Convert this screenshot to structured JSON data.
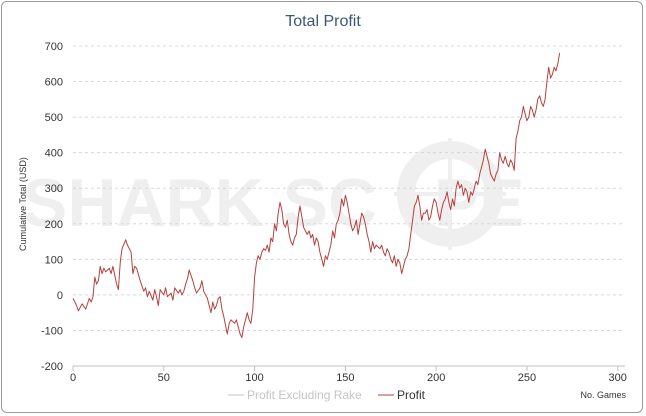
{
  "chart_data": {
    "type": "line",
    "title": "Total Profit",
    "ylabel": "Cumulative Total (USD)",
    "xlabel": "No. Games",
    "xlim": [
      0,
      304
    ],
    "ylim": [
      -200,
      700
    ],
    "xticks": [
      0,
      50,
      100,
      150,
      200,
      250,
      300
    ],
    "yticks": [
      -200,
      -100,
      0,
      100,
      200,
      300,
      400,
      500,
      600,
      700
    ],
    "grid": "horizontal dashed",
    "legend_position": "bottom",
    "watermark": "SHARK SCOPE",
    "colors": {
      "profit": "#b4413e",
      "profit_excluding_rake": "#c4c4c4",
      "title": "#3d5777",
      "grid": "#d8d8d8"
    },
    "series": [
      {
        "name": "Profit Excluding Rake",
        "visible": false,
        "points": []
      },
      {
        "name": "Profit",
        "visible": true,
        "points": [
          [
            0,
            -10
          ],
          [
            2,
            -30
          ],
          [
            3,
            -45
          ],
          [
            5,
            -25
          ],
          [
            7,
            -40
          ],
          [
            9,
            -10
          ],
          [
            10,
            -20
          ],
          [
            11,
            -5
          ],
          [
            12,
            50
          ],
          [
            13,
            30
          ],
          [
            14,
            40
          ],
          [
            15,
            80
          ],
          [
            16,
            60
          ],
          [
            17,
            75
          ],
          [
            18,
            65
          ],
          [
            20,
            75
          ],
          [
            21,
            60
          ],
          [
            22,
            80
          ],
          [
            24,
            30
          ],
          [
            25,
            15
          ],
          [
            26,
            90
          ],
          [
            27,
            130
          ],
          [
            29,
            155
          ],
          [
            30,
            140
          ],
          [
            32,
            120
          ],
          [
            33,
            60
          ],
          [
            34,
            80
          ],
          [
            35,
            75
          ],
          [
            37,
            40
          ],
          [
            39,
            10
          ],
          [
            40,
            20
          ],
          [
            41,
            -5
          ],
          [
            42,
            10
          ],
          [
            44,
            -15
          ],
          [
            45,
            15
          ],
          [
            46,
            -5
          ],
          [
            47,
            -30
          ],
          [
            48,
            15
          ],
          [
            50,
            0
          ],
          [
            51,
            20
          ],
          [
            52,
            -5
          ],
          [
            54,
            5
          ],
          [
            55,
            -15
          ],
          [
            56,
            20
          ],
          [
            58,
            5
          ],
          [
            59,
            15
          ],
          [
            60,
            0
          ],
          [
            61,
            10
          ],
          [
            62,
            30
          ],
          [
            63,
            45
          ],
          [
            64,
            70
          ],
          [
            66,
            40
          ],
          [
            67,
            20
          ],
          [
            68,
            5
          ],
          [
            70,
            20
          ],
          [
            71,
            40
          ],
          [
            72,
            10
          ],
          [
            74,
            -10
          ],
          [
            75,
            -30
          ],
          [
            76,
            -50
          ],
          [
            77,
            -20
          ],
          [
            78,
            -40
          ],
          [
            79,
            -30
          ],
          [
            80,
            -10
          ],
          [
            81,
            -5
          ],
          [
            82,
            -40
          ],
          [
            83,
            -60
          ],
          [
            84,
            -85
          ],
          [
            85,
            -110
          ],
          [
            86,
            -80
          ],
          [
            87,
            -70
          ],
          [
            89,
            -80
          ],
          [
            90,
            -70
          ],
          [
            91,
            -90
          ],
          [
            92,
            -110
          ],
          [
            93,
            -120
          ],
          [
            94,
            -90
          ],
          [
            96,
            -50
          ],
          [
            97,
            -70
          ],
          [
            98,
            -80
          ],
          [
            99,
            -40
          ],
          [
            100,
            50
          ],
          [
            101,
            90
          ],
          [
            102,
            110
          ],
          [
            103,
            100
          ],
          [
            104,
            120
          ],
          [
            105,
            130
          ],
          [
            106,
            125
          ],
          [
            107,
            140
          ],
          [
            108,
            120
          ],
          [
            109,
            160
          ],
          [
            110,
            150
          ],
          [
            111,
            200
          ],
          [
            112,
            180
          ],
          [
            113,
            230
          ],
          [
            114,
            260
          ],
          [
            115,
            240
          ],
          [
            116,
            200
          ],
          [
            117,
            190
          ],
          [
            118,
            210
          ],
          [
            119,
            170
          ],
          [
            120,
            150
          ],
          [
            121,
            140
          ],
          [
            122,
            160
          ],
          [
            123,
            170
          ],
          [
            124,
            220
          ],
          [
            125,
            250
          ],
          [
            126,
            220
          ],
          [
            127,
            190
          ],
          [
            128,
            180
          ],
          [
            129,
            170
          ],
          [
            130,
            180
          ],
          [
            131,
            160
          ],
          [
            132,
            170
          ],
          [
            133,
            140
          ],
          [
            134,
            160
          ],
          [
            135,
            150
          ],
          [
            136,
            120
          ],
          [
            137,
            100
          ],
          [
            138,
            80
          ],
          [
            139,
            110
          ],
          [
            140,
            100
          ],
          [
            141,
            120
          ],
          [
            142,
            140
          ],
          [
            143,
            180
          ],
          [
            144,
            160
          ],
          [
            145,
            200
          ],
          [
            146,
            210
          ],
          [
            147,
            230
          ],
          [
            148,
            270
          ],
          [
            149,
            250
          ],
          [
            150,
            280
          ],
          [
            151,
            260
          ],
          [
            152,
            230
          ],
          [
            153,
            200
          ],
          [
            154,
            180
          ],
          [
            155,
            190
          ],
          [
            156,
            210
          ],
          [
            157,
            170
          ],
          [
            158,
            200
          ],
          [
            159,
            230
          ],
          [
            160,
            220
          ],
          [
            161,
            200
          ],
          [
            162,
            170
          ],
          [
            163,
            150
          ],
          [
            164,
            120
          ],
          [
            165,
            150
          ],
          [
            166,
            130
          ],
          [
            167,
            140
          ],
          [
            169,
            130
          ],
          [
            170,
            140
          ],
          [
            171,
            120
          ],
          [
            172,
            110
          ],
          [
            173,
            130
          ],
          [
            174,
            120
          ],
          [
            175,
            100
          ],
          [
            176,
            90
          ],
          [
            177,
            110
          ],
          [
            178,
            80
          ],
          [
            179,
            100
          ],
          [
            180,
            90
          ],
          [
            181,
            60
          ],
          [
            182,
            80
          ],
          [
            183,
            100
          ],
          [
            184,
            110
          ],
          [
            185,
            130
          ],
          [
            186,
            170
          ],
          [
            187,
            210
          ],
          [
            188,
            250
          ],
          [
            189,
            260
          ],
          [
            190,
            280
          ],
          [
            191,
            250
          ],
          [
            192,
            210
          ],
          [
            193,
            230
          ],
          [
            194,
            230
          ],
          [
            195,
            240
          ],
          [
            196,
            210
          ],
          [
            197,
            220
          ],
          [
            198,
            250
          ],
          [
            199,
            270
          ],
          [
            200,
            260
          ],
          [
            201,
            230
          ],
          [
            202,
            210
          ],
          [
            203,
            240
          ],
          [
            204,
            260
          ],
          [
            205,
            270
          ],
          [
            206,
            290
          ],
          [
            207,
            260
          ],
          [
            208,
            240
          ],
          [
            209,
            270
          ],
          [
            210,
            250
          ],
          [
            211,
            300
          ],
          [
            212,
            320
          ],
          [
            213,
            300
          ],
          [
            214,
            310
          ],
          [
            215,
            280
          ],
          [
            216,
            300
          ],
          [
            217,
            290
          ],
          [
            218,
            260
          ],
          [
            219,
            290
          ],
          [
            220,
            280
          ],
          [
            221,
            300
          ],
          [
            222,
            320
          ],
          [
            223,
            310
          ],
          [
            224,
            340
          ],
          [
            225,
            360
          ],
          [
            226,
            380
          ],
          [
            227,
            410
          ],
          [
            228,
            390
          ],
          [
            229,
            370
          ],
          [
            230,
            340
          ],
          [
            231,
            330
          ],
          [
            232,
            320
          ],
          [
            233,
            340
          ],
          [
            234,
            350
          ],
          [
            235,
            400
          ],
          [
            236,
            380
          ],
          [
            237,
            370
          ],
          [
            238,
            390
          ],
          [
            239,
            370
          ],
          [
            240,
            360
          ],
          [
            241,
            380
          ],
          [
            242,
            370
          ],
          [
            243,
            350
          ],
          [
            244,
            440
          ],
          [
            245,
            460
          ],
          [
            246,
            490
          ],
          [
            247,
            500
          ],
          [
            248,
            530
          ],
          [
            249,
            510
          ],
          [
            250,
            490
          ],
          [
            251,
            500
          ],
          [
            252,
            530
          ],
          [
            253,
            520
          ],
          [
            254,
            500
          ],
          [
            255,
            520
          ],
          [
            256,
            550
          ],
          [
            257,
            560
          ],
          [
            258,
            540
          ],
          [
            259,
            530
          ],
          [
            260,
            550
          ],
          [
            261,
            600
          ],
          [
            262,
            640
          ],
          [
            263,
            610
          ],
          [
            264,
            620
          ],
          [
            265,
            640
          ],
          [
            266,
            630
          ],
          [
            267,
            650
          ],
          [
            268,
            680
          ]
        ]
      }
    ]
  }
}
